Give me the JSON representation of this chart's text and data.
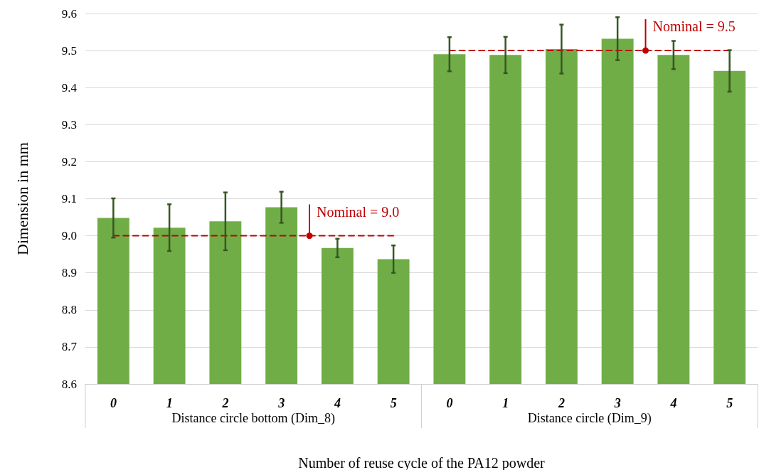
{
  "chart_data": {
    "type": "bar",
    "xlabel": "Number of reuse cycle of the PA12 powder",
    "ylabel": "Dimension in mm",
    "categories": [
      "0",
      "1",
      "2",
      "3",
      "4",
      "5",
      "0",
      "1",
      "2",
      "3",
      "4",
      "5"
    ],
    "series": [
      {
        "color": "#70ad47",
        "values": [
          9.048,
          9.022,
          9.039,
          9.077,
          8.967,
          8.937,
          9.49,
          9.488,
          9.504,
          9.532,
          9.488,
          9.445
        ],
        "errors": [
          0.053,
          0.063,
          0.078,
          0.042,
          0.025,
          0.037,
          0.046,
          0.049,
          0.066,
          0.058,
          0.038,
          0.056
        ]
      },
      {
        "type": "line",
        "color": "#c00000",
        "line_style": "dashed",
        "marker": "none",
        "values": [
          9.0,
          9.0,
          9.0,
          9.0,
          9.0,
          9.0,
          null,
          null,
          null,
          null,
          null,
          null
        ]
      },
      {
        "type": "line",
        "color": "#c00000",
        "line_style": "dashed",
        "marker": "none",
        "values": [
          null,
          null,
          null,
          null,
          null,
          null,
          9.5,
          9.5,
          9.5,
          9.5,
          9.5,
          9.5
        ]
      }
    ],
    "annotations": [
      "Distance circle bottom (Dim_8)",
      "Distance circle (Dim_9)",
      {
        "text": "Nominal = 9.0",
        "y": 9.0
      },
      {
        "text": "Nominal = 9.5",
        "y": 9.5
      }
    ],
    "ylim": [
      8.6,
      9.6
    ],
    "yticks": [
      8.6,
      8.7,
      8.8,
      8.9,
      {
        "value": 9.0,
        "label": "9.0"
      },
      9.1,
      9.2,
      9.3,
      9.4,
      9.5,
      9.6
    ],
    "grid": "y"
  }
}
